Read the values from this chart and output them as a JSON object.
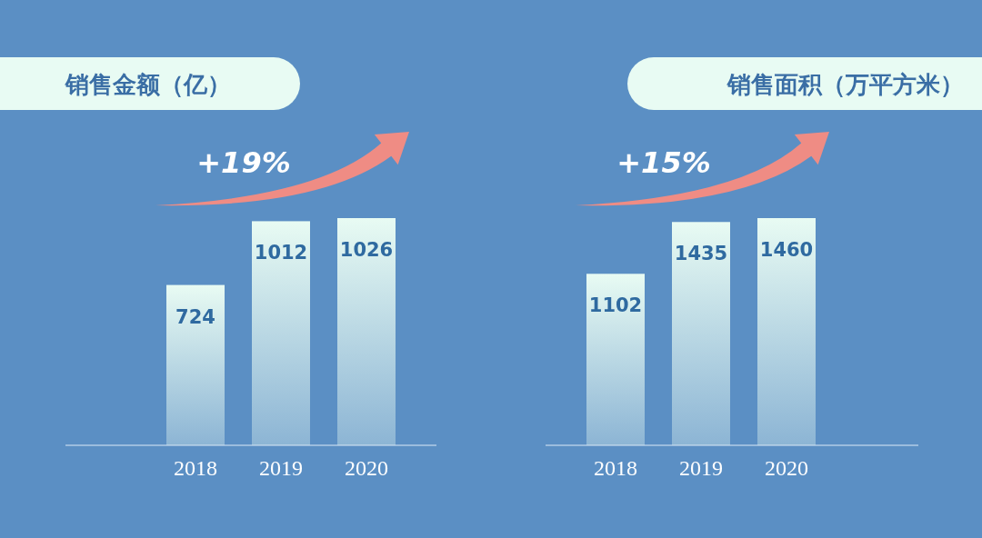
{
  "chart_data": [
    {
      "type": "bar",
      "title": "销售金额（亿）",
      "categories": [
        "2018",
        "2019",
        "2020"
      ],
      "values": [
        724,
        1012,
        1026
      ],
      "color": "#e8fbf3",
      "data_labels": true,
      "annotations": [
        "+19%"
      ]
    },
    {
      "type": "bar",
      "title": "销售面积（万平方米）",
      "categories": [
        "2018",
        "2019",
        "2020"
      ],
      "values": [
        1102,
        1435,
        1460
      ],
      "color": "#e8fbf3",
      "data_labels": true,
      "annotations": [
        "+15%"
      ]
    }
  ]
}
